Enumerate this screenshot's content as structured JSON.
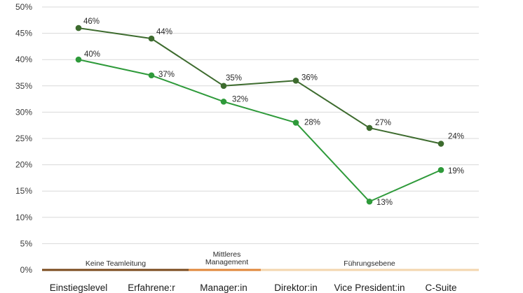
{
  "chart_data": {
    "type": "line",
    "categories": [
      "Einstiegslevel",
      "Erfahrene:r",
      "Manager:in",
      "Direktor:in",
      "Vice President:in",
      "C-Suite"
    ],
    "series": [
      {
        "values": [
          46,
          44,
          35,
          36,
          27,
          24
        ],
        "color": "#3d6b2e",
        "labels": [
          "46%",
          "44%",
          "35%",
          "36%",
          "27%",
          "24%"
        ]
      },
      {
        "values": [
          40,
          37,
          32,
          28,
          13,
          19
        ],
        "color": "#2e9a3a",
        "labels": [
          "40%",
          "37%",
          "32%",
          "28%",
          "13%",
          "19%"
        ]
      }
    ],
    "ylim": [
      0,
      50
    ],
    "y_ticks": [
      "0%",
      "5%",
      "10%",
      "15%",
      "20%",
      "25%",
      "30%",
      "35%",
      "40%",
      "45%",
      "50%"
    ],
    "grid": true,
    "groups": [
      {
        "label": "Keine Teamleitung",
        "color": "#7a4a1c"
      },
      {
        "label_lines": [
          "Mittleres",
          "Management"
        ],
        "color": "#e0873a"
      },
      {
        "label": "Führungsebene",
        "color": "#f3d6ae"
      }
    ]
  }
}
